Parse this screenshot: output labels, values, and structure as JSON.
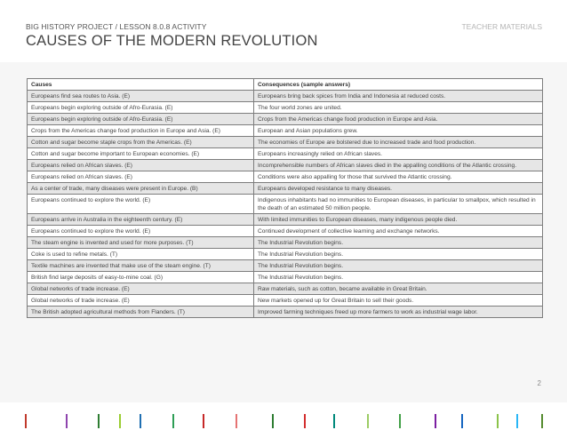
{
  "header": {
    "kicker": "BIG HISTORY PROJECT / LESSON 8.0.8 ACTIVITY",
    "title": "CAUSES OF THE MODERN REVOLUTION",
    "teacher_label": "TEACHER MATERIALS"
  },
  "table": {
    "headers": [
      "Causes",
      "Consequences (sample answers)"
    ],
    "rows": [
      [
        "Europeans find sea routes to Asia. (E)",
        "Europeans bring back spices from India and Indonesia at reduced costs."
      ],
      [
        "Europeans begin exploring outside of Afro-Eurasia. (E)",
        "The four world zones are united."
      ],
      [
        "Europeans begin exploring outside of Afro-Eurasia. (E)",
        "Crops from the Americas change food production in Europe and Asia."
      ],
      [
        "Crops from the Americas change food production in Europe and Asia. (E)",
        "European and Asian populations grew."
      ],
      [
        "Cotton and sugar become staple crops from the Americas. (E)",
        "The economies of Europe are bolstered due to increased trade and food production."
      ],
      [
        "Cotton and sugar become important to European economies. (E)",
        "Europeans increasingly relied on African slaves."
      ],
      [
        "Europeans relied on African slaves. (E)",
        "Incomprehensible numbers of African slaves died in the appalling conditions of the Atlantic crossing."
      ],
      [
        "Europeans relied on African slaves. (E)",
        "Conditions were also appalling for those that survived the Atlantic crossing."
      ],
      [
        "As a center of trade, many diseases were present in Europe. (B)",
        "Europeans developed resistance to many diseases."
      ],
      [
        "Europeans continued to explore the world. (E)",
        "Indigenous inhabitants had no immunities to European diseases, in particular to smallpox, which resulted in the death of an estimated 50 million people."
      ],
      [
        "Europeans arrive in Australia in the eighteenth century. (E)",
        "With limited immunities to European diseases, many indigenous people died."
      ],
      [
        "Europeans continued to explore the world. (E)",
        "Continued development of collective learning and exchange networks."
      ],
      [
        "The steam engine is invented and used for more purposes. (T)",
        "The Industrial Revolution begins."
      ],
      [
        "Coke is used to refine metals. (T)",
        "The Industrial Revolution begins."
      ],
      [
        "Textile machines are invented that make use of the steam engine. (T)",
        "The Industrial Revolution begins."
      ],
      [
        "British find large deposits of easy-to-mine coal. (G)",
        "The Industrial Revolution begins."
      ],
      [
        "Global networks of trade increase. (E)",
        "Raw materials, such as cotton, became available in Great Britain."
      ],
      [
        "Global networks of trade increase. (E)",
        "New markets opened up for Great Britain to sell their goods."
      ],
      [
        "The British adopted agricultural methods from Flanders. (T)",
        "Improved farming techniques freed up more farmers to work as industrial wage labor."
      ]
    ]
  },
  "page_number": "2",
  "footer_bar_colors": [
    "#c0392b",
    "#8e44ad",
    "#2e7d32",
    "#9acd32",
    "#1f6fb2",
    "#2e9e56",
    "#c62828",
    "#e57373",
    "#2e7d32",
    "#d32f2f",
    "#00897b",
    "#9ccc65",
    "#43a047",
    "#7b1fa2",
    "#1565c0",
    "#8bc34a",
    "#29b6f6",
    "#558b2f"
  ]
}
